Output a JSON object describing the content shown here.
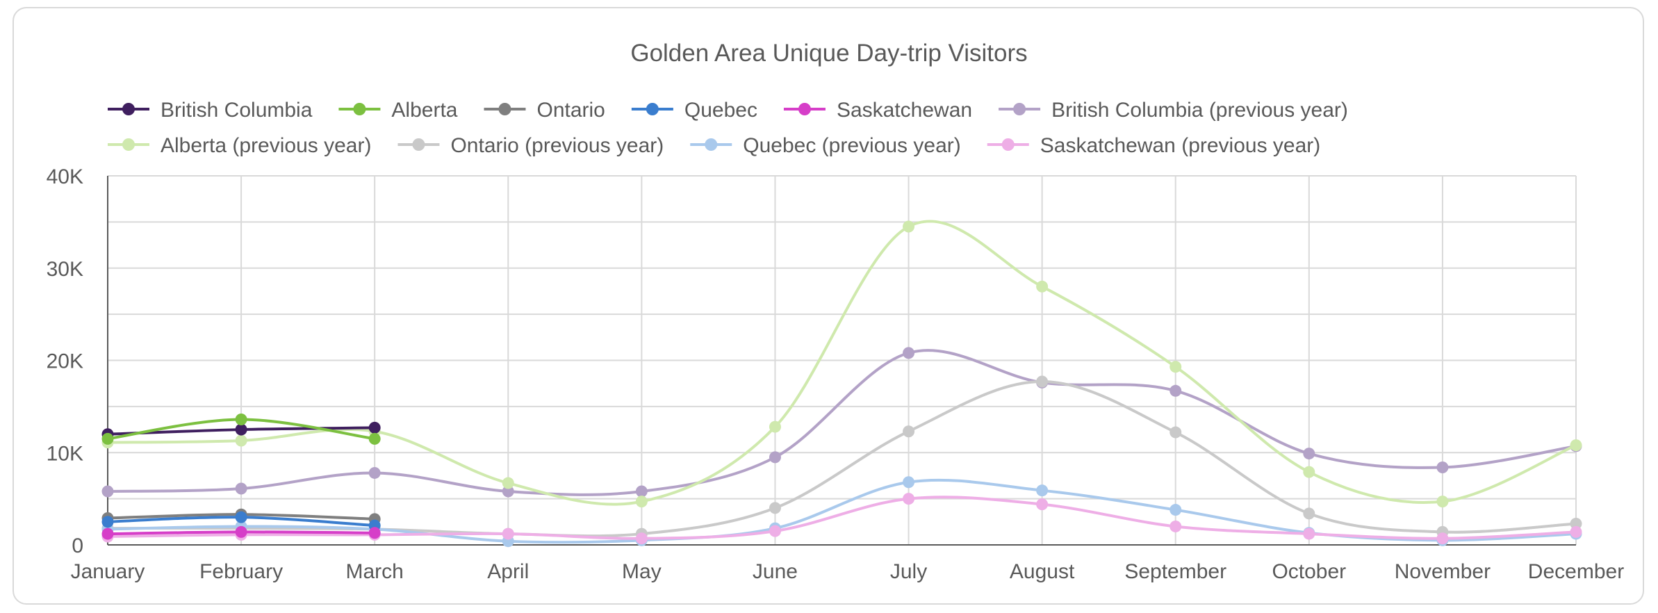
{
  "chart_data": {
    "type": "line",
    "title": "Golden Area Unique Day-trip Visitors",
    "xlabel": "",
    "ylabel": "",
    "ylim": [
      0,
      40000
    ],
    "yticks": [
      {
        "value": 0,
        "label": "0"
      },
      {
        "value": 10000,
        "label": "10K"
      },
      {
        "value": 20000,
        "label": "20K"
      },
      {
        "value": 30000,
        "label": "30K"
      },
      {
        "value": 40000,
        "label": "40K"
      }
    ],
    "categories": [
      "January",
      "February",
      "March",
      "April",
      "May",
      "June",
      "July",
      "August",
      "September",
      "October",
      "November",
      "December"
    ],
    "grid": true,
    "legend_position": "top",
    "series": [
      {
        "name": "British Columbia",
        "color": "#3f1f5f",
        "values": [
          12000,
          12500,
          12700,
          null,
          null,
          null,
          null,
          null,
          null,
          null,
          null,
          null
        ]
      },
      {
        "name": "Alberta",
        "color": "#7cc040",
        "values": [
          11500,
          13600,
          11500,
          null,
          null,
          null,
          null,
          null,
          null,
          null,
          null,
          null
        ]
      },
      {
        "name": "Ontario",
        "color": "#7f7f7f",
        "values": [
          2900,
          3300,
          2800,
          null,
          null,
          null,
          null,
          null,
          null,
          null,
          null,
          null
        ]
      },
      {
        "name": "Quebec",
        "color": "#3a7dce",
        "values": [
          2500,
          3000,
          2100,
          null,
          null,
          null,
          null,
          null,
          null,
          null,
          null,
          null
        ]
      },
      {
        "name": "Saskatchewan",
        "color": "#d63ec8",
        "values": [
          1200,
          1400,
          1300,
          null,
          null,
          null,
          null,
          null,
          null,
          null,
          null,
          null
        ]
      },
      {
        "name": "British Columbia (previous year)",
        "color": "#b3a2c7",
        "values": [
          5800,
          6100,
          7800,
          5800,
          5800,
          9500,
          20800,
          17600,
          16700,
          9900,
          8400,
          10700
        ]
      },
      {
        "name": "Alberta (previous year)",
        "color": "#cfe9ad",
        "values": [
          11100,
          11300,
          12300,
          6700,
          4700,
          12800,
          34500,
          28000,
          19300,
          7900,
          4700,
          10800
        ]
      },
      {
        "name": "Ontario (previous year)",
        "color": "#c9c9c9",
        "values": [
          1800,
          1800,
          1700,
          1200,
          1200,
          4000,
          12300,
          17700,
          12200,
          3400,
          1400,
          2300
        ]
      },
      {
        "name": "Quebec (previous year)",
        "color": "#a9c9ec",
        "values": [
          1700,
          2000,
          1700,
          400,
          500,
          1800,
          6800,
          5900,
          3800,
          1300,
          500,
          1200
        ]
      },
      {
        "name": "Saskatchewan (previous year)",
        "color": "#eeaee6",
        "values": [
          900,
          1100,
          1100,
          1200,
          700,
          1500,
          5000,
          4400,
          2000,
          1200,
          700,
          1400
        ]
      }
    ]
  }
}
